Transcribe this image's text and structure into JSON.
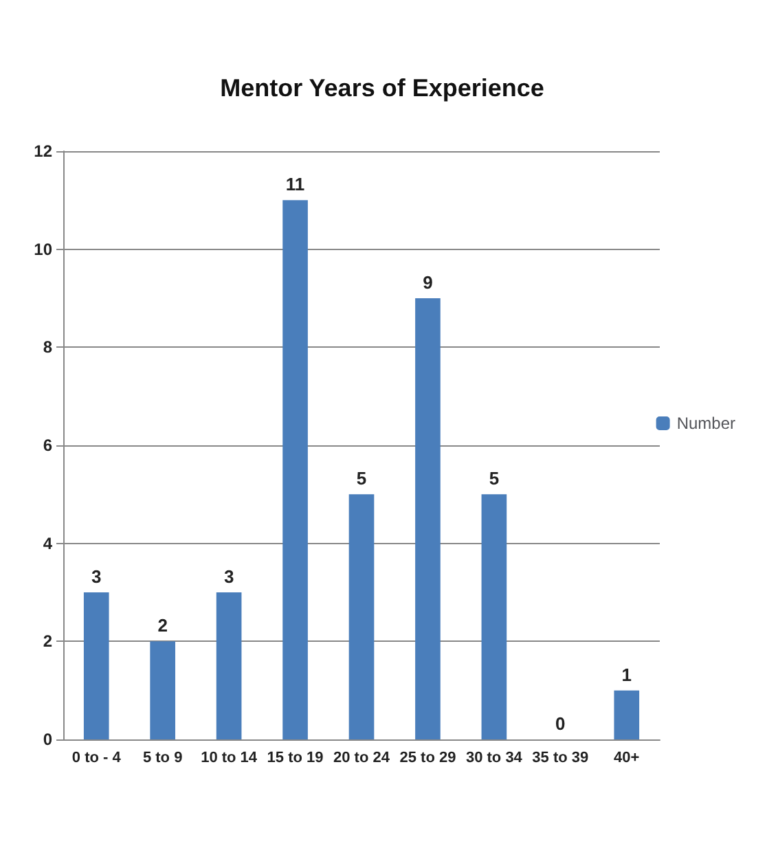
{
  "chart_data": {
    "type": "bar",
    "title": "Mentor Years of Experience",
    "categories": [
      "0 to - 4",
      "5 to 9",
      "10 to 14",
      "15 to 19",
      "20 to 24",
      "25 to 29",
      "30 to 34",
      "35 to 39",
      "40+"
    ],
    "series": [
      {
        "name": "Number",
        "color": "#4a7ebb",
        "values": [
          3,
          2,
          3,
          11,
          5,
          9,
          5,
          0,
          1
        ]
      }
    ],
    "ylim": [
      0,
      12
    ],
    "yticks": [
      0,
      2,
      4,
      6,
      8,
      10,
      12
    ],
    "grid": "y",
    "legend": "right",
    "data_labels": true
  }
}
